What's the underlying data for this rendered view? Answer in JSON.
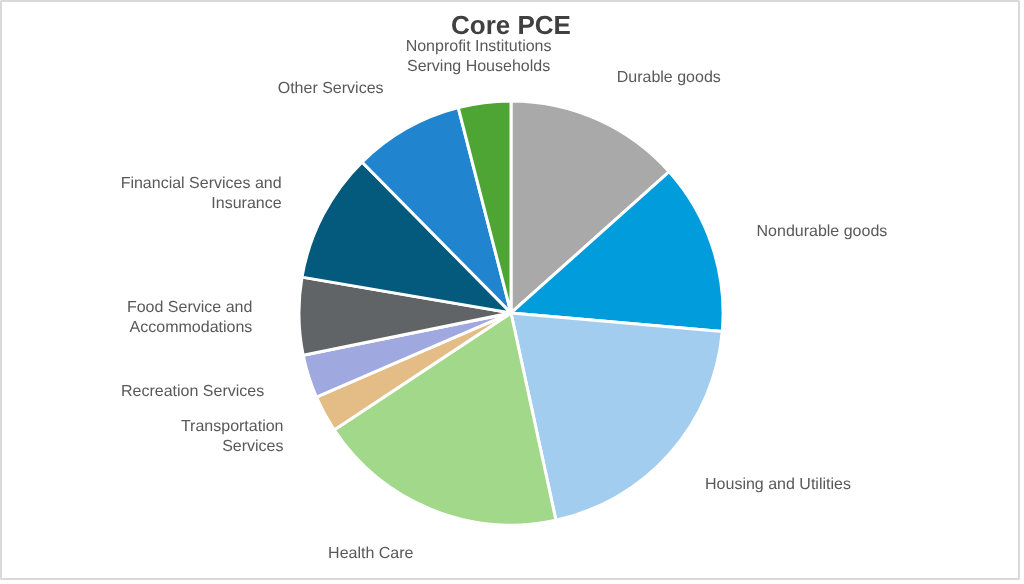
{
  "chart_data": {
    "type": "pie",
    "title": "Core PCE",
    "categories": [
      "Durable goods",
      "Nondurable goods",
      "Housing and Utilities",
      "Health Care",
      "Transportation\nServices",
      "Recreation Services",
      "Food Service and\nAccommodations",
      "Financial Services and\nInsurance",
      "Other Services",
      "Nonprofit Institutions\nServing Households"
    ],
    "values": [
      13.4,
      13.0,
      20.2,
      19.1,
      2.8,
      3.3,
      5.9,
      9.9,
      8.4,
      4.0
    ],
    "colors": [
      "#a9a9a9",
      "#009cdc",
      "#a3cdef",
      "#a1d88a",
      "#e3bc86",
      "#a0a8e0",
      "#616466",
      "#045a7d",
      "#2084cf",
      "#4ea534"
    ]
  }
}
